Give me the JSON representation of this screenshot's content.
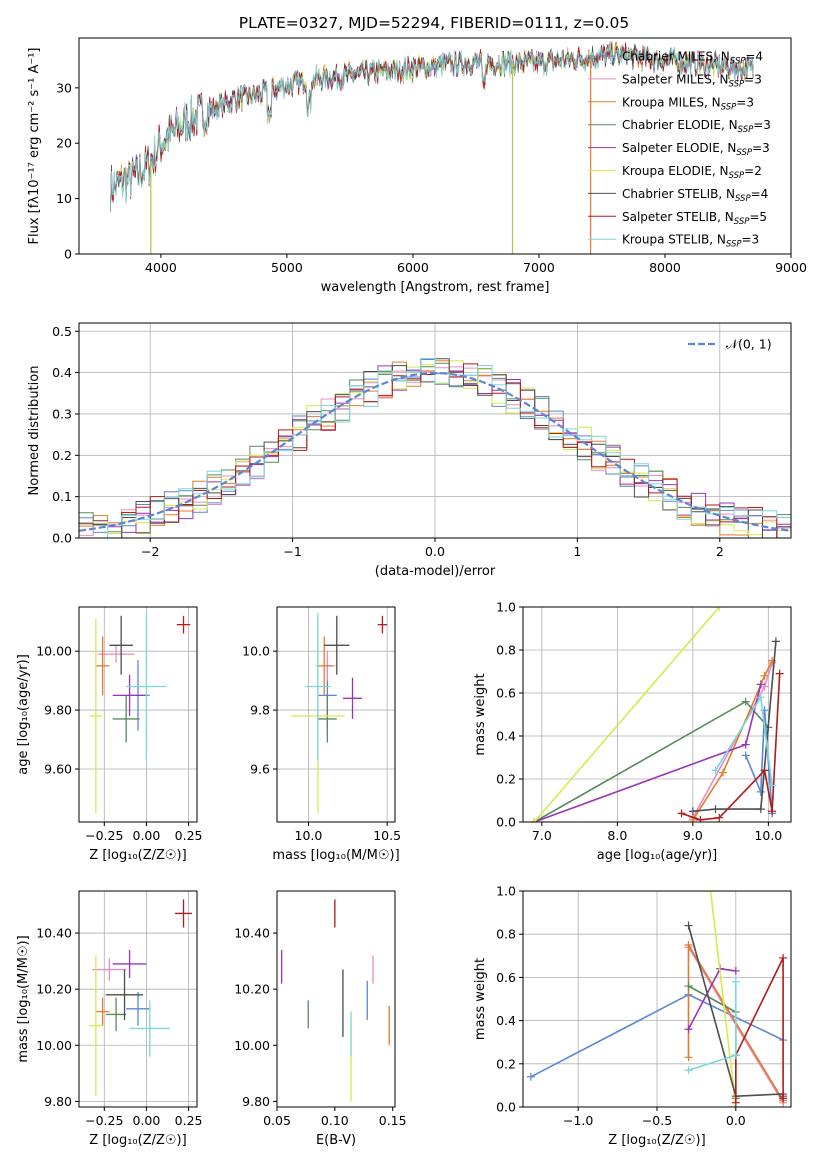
{
  "title": "PLATE=0327, MJD=52294, FIBERID=0111, z=0.05",
  "colors": {
    "chabrier_miles": "#5b86d6",
    "salpeter_miles": "#e88cc4",
    "kroupa_miles": "#e07c2c",
    "chabrier_elodie": "#5a8a5c",
    "salpeter_elodie": "#9a34b4",
    "kroupa_elodie": "#d6ea4a",
    "chabrier_stelib": "#4d4d4d",
    "salpeter_stelib": "#b41a1a",
    "kroupa_stelib": "#7ad8dc",
    "normal": "#5b86d6"
  },
  "chart_data": [
    {
      "id": "spectrum",
      "type": "line",
      "xlabel": "wavelength [Angstrom, rest frame]",
      "ylabel": "Flux [fλ10⁻¹⁷ erg cm⁻² s⁻¹ A⁻¹]",
      "xlim": [
        3350,
        9000
      ],
      "ylim": [
        0,
        39
      ],
      "xticks": [
        4000,
        5000,
        6000,
        7000,
        8000,
        9000
      ],
      "yticks": [
        0,
        10,
        20,
        30
      ],
      "legend": "upper right",
      "legend_entries": [
        "Chabrier MILES, N_SSP=4",
        "Salpeter MILES, N_SSP=3",
        "Kroupa MILES, N_SSP=3",
        "Chabrier ELODIE, N_SSP=3",
        "Salpeter ELODIE, N_SSP=3",
        "Kroupa ELODIE, N_SSP=2",
        "Chabrier STELIB, N_SSP=4",
        "Salpeter STELIB, N_SSP=5",
        "Kroupa STELIB, N_SSP=3"
      ],
      "continuum": {
        "x": [
          3600,
          3700,
          3800,
          3900,
          4000,
          4200,
          4400,
          4600,
          4800,
          5000,
          5200,
          5400,
          5600,
          5800,
          6000,
          6200,
          6400,
          6600,
          6800,
          7000,
          7200,
          7400,
          7600,
          7800,
          8000,
          8200,
          8400,
          8600
        ],
        "y": [
          12,
          13,
          14,
          16,
          20,
          24,
          26,
          28,
          29,
          30.5,
          31.5,
          32,
          32.5,
          33,
          33.5,
          34,
          34.5,
          34.5,
          34.5,
          34.5,
          35,
          35.5,
          36,
          35.5,
          35,
          34.5,
          34,
          33.5
        ]
      }
    },
    {
      "id": "residuals",
      "type": "histogram",
      "xlabel": "(data-model)/error",
      "ylabel": "Normed distribution",
      "xlim": [
        -2.5,
        2.5
      ],
      "ylim": [
        0,
        0.52
      ],
      "xticks": [
        -2,
        -1,
        0,
        1,
        2
      ],
      "yticks": [
        0.0,
        0.1,
        0.2,
        0.3,
        0.4,
        0.5
      ],
      "grid": true,
      "legend": "upper right",
      "legend_entries": [
        "𝒩(0, 1)"
      ],
      "bin_width": 0.1,
      "normal_curve": {
        "mean": 0,
        "sigma": 1
      }
    },
    {
      "id": "z_vs_age",
      "type": "scatter",
      "xlabel": "Z [log₁₀(Z/Z☉)]",
      "ylabel": "age  [log₁₀(age/yr)]",
      "xlim": [
        -0.4,
        0.3
      ],
      "ylim": [
        9.42,
        10.15
      ],
      "xticks": [
        -0.25,
        0.0,
        0.25
      ],
      "yticks": [
        9.6,
        9.8,
        10.0
      ],
      "grid": true,
      "points": [
        {
          "x": -0.05,
          "y": 9.85,
          "xerr": 0.07,
          "yerr": 0.12
        },
        {
          "x": -0.18,
          "y": 9.99,
          "xerr": 0.11,
          "yerr": 0.03
        },
        {
          "x": -0.26,
          "y": 9.95,
          "xerr": 0.04,
          "yerr": 0.1
        },
        {
          "x": -0.12,
          "y": 9.77,
          "xerr": 0.08,
          "yerr": 0.08
        },
        {
          "x": -0.1,
          "y": 9.85,
          "xerr": 0.1,
          "yerr": 0.07
        },
        {
          "x": -0.3,
          "y": 9.78,
          "xerr": 0.04,
          "yerr": 0.33
        },
        {
          "x": -0.15,
          "y": 10.02,
          "xerr": 0.07,
          "yerr": 0.1
        },
        {
          "x": 0.22,
          "y": 10.09,
          "xerr": 0.04,
          "yerr": 0.03
        },
        {
          "x": 0.0,
          "y": 9.88,
          "xerr": 0.12,
          "yerr": 0.25
        }
      ]
    },
    {
      "id": "mass_vs_age",
      "type": "scatter",
      "xlabel": "mass [log₁₀(M/M☉)]",
      "ylabel": "",
      "xlim": [
        9.8,
        10.55
      ],
      "ylim": [
        9.42,
        10.15
      ],
      "xticks": [
        10.0,
        10.5
      ],
      "yticks": [
        9.6,
        9.8,
        10.0
      ],
      "grid": true,
      "points": [
        {
          "x": 10.12,
          "y": 9.85,
          "xerr": 0.06,
          "yerr": 0.12
        },
        {
          "x": 10.12,
          "y": 9.95,
          "xerr": 0.05,
          "yerr": 0.05
        },
        {
          "x": 10.1,
          "y": 9.95,
          "xerr": 0.05,
          "yerr": 0.1
        },
        {
          "x": 10.12,
          "y": 9.77,
          "xerr": 0.06,
          "yerr": 0.08
        },
        {
          "x": 10.28,
          "y": 9.84,
          "xerr": 0.06,
          "yerr": 0.07
        },
        {
          "x": 10.06,
          "y": 9.78,
          "xerr": 0.17,
          "yerr": 0.33
        },
        {
          "x": 10.18,
          "y": 10.02,
          "xerr": 0.08,
          "yerr": 0.1
        },
        {
          "x": 10.47,
          "y": 10.09,
          "xerr": 0.03,
          "yerr": 0.03
        },
        {
          "x": 10.06,
          "y": 9.88,
          "xerr": 0.08,
          "yerr": 0.25
        }
      ]
    },
    {
      "id": "age_vs_weight",
      "type": "line",
      "xlabel": "age  [log₁₀(age/yr)]",
      "ylabel": "mass weight",
      "xlim": [
        6.75,
        10.3
      ],
      "ylim": [
        0,
        1
      ],
      "xticks": [
        7,
        8,
        9,
        10
      ],
      "yticks": [
        0.0,
        0.2,
        0.4,
        0.6,
        0.8,
        1.0
      ],
      "grid": true,
      "series": [
        {
          "x": [
            9.7,
            9.9,
            9.95,
            10.05
          ],
          "y": [
            0.31,
            0.14,
            0.52,
            0.04
          ]
        },
        {
          "x": [
            9.0,
            9.95,
            10.05
          ],
          "y": [
            0.02,
            0.63,
            0.74
          ]
        },
        {
          "x": [
            9.0,
            9.4,
            9.95,
            10.05
          ],
          "y": [
            0.01,
            0.23,
            0.68,
            0.75
          ]
        },
        {
          "x": [
            6.9,
            9.7,
            10.0
          ],
          "y": [
            0.0,
            0.56,
            0.44
          ]
        },
        {
          "x": [
            6.9,
            9.7,
            9.9
          ],
          "y": [
            0.0,
            0.36,
            0.64
          ]
        },
        {
          "x": [
            6.9,
            9.35
          ],
          "y": [
            0.0,
            1.0
          ]
        },
        {
          "x": [
            9.0,
            9.3,
            9.9,
            10.1
          ],
          "y": [
            0.05,
            0.06,
            0.06,
            0.84
          ]
        },
        {
          "x": [
            8.85,
            9.1,
            9.35,
            9.95,
            10.05,
            10.15
          ],
          "y": [
            0.04,
            0.01,
            0.02,
            0.24,
            0.05,
            0.69
          ]
        },
        {
          "x": [
            9.3,
            9.9,
            10.05
          ],
          "y": [
            0.24,
            0.58,
            0.17
          ]
        }
      ]
    },
    {
      "id": "z_vs_mass",
      "type": "scatter",
      "xlabel": "Z [log₁₀(Z/Z☉)]",
      "ylabel": "mass [log₁₀(M/M☉)]",
      "xlim": [
        -0.4,
        0.3
      ],
      "ylim": [
        9.78,
        10.55
      ],
      "xticks": [
        -0.25,
        0.0,
        0.25
      ],
      "yticks": [
        9.8,
        10.0,
        10.2,
        10.4
      ],
      "grid": true,
      "points": [
        {
          "x": -0.05,
          "y": 10.13,
          "xerr": 0.07,
          "yerr": 0.06
        },
        {
          "x": -0.22,
          "y": 10.27,
          "xerr": 0.1,
          "yerr": 0.04
        },
        {
          "x": -0.26,
          "y": 10.12,
          "xerr": 0.04,
          "yerr": 0.05
        },
        {
          "x": -0.18,
          "y": 10.11,
          "xerr": 0.06,
          "yerr": 0.06
        },
        {
          "x": -0.1,
          "y": 10.29,
          "xerr": 0.1,
          "yerr": 0.05
        },
        {
          "x": -0.3,
          "y": 10.07,
          "xerr": 0.04,
          "yerr": 0.25
        },
        {
          "x": -0.13,
          "y": 10.18,
          "xerr": 0.11,
          "yerr": 0.09
        },
        {
          "x": 0.22,
          "y": 10.47,
          "xerr": 0.05,
          "yerr": 0.05
        },
        {
          "x": 0.02,
          "y": 10.06,
          "xerr": 0.12,
          "yerr": 0.1
        }
      ]
    },
    {
      "id": "ebv_vs_mass",
      "type": "scatter",
      "xlabel": "E(B-V)",
      "ylabel": "",
      "xlim": [
        0.05,
        0.152
      ],
      "ylim": [
        9.78,
        10.55
      ],
      "xticks": [
        0.05,
        0.1,
        0.15
      ],
      "yticks": [
        9.8,
        10.0,
        10.2,
        10.4
      ],
      "grid": false,
      "points": [
        {
          "x": 0.128,
          "y": 10.16,
          "yerr": 0.07
        },
        {
          "x": 0.133,
          "y": 10.27,
          "yerr": 0.05
        },
        {
          "x": 0.147,
          "y": 10.07,
          "yerr": 0.07
        },
        {
          "x": 0.077,
          "y": 10.11,
          "yerr": 0.05
        },
        {
          "x": 0.054,
          "y": 10.28,
          "yerr": 0.06
        },
        {
          "x": 0.114,
          "y": 9.94,
          "yerr": 0.14
        },
        {
          "x": 0.107,
          "y": 10.15,
          "yerr": 0.12
        },
        {
          "x": 0.1,
          "y": 10.47,
          "yerr": 0.05
        },
        {
          "x": 0.114,
          "y": 10.04,
          "yerr": 0.08
        }
      ]
    },
    {
      "id": "z_vs_weight",
      "type": "line",
      "xlabel": "Z [log₁₀(Z/Z☉)]",
      "ylabel": "mass weight",
      "xlim": [
        -1.35,
        0.35
      ],
      "ylim": [
        0,
        1
      ],
      "xticks": [
        -1.0,
        -0.5,
        0.0
      ],
      "yticks": [
        0.0,
        0.2,
        0.4,
        0.6,
        0.8,
        1.0
      ],
      "grid": true,
      "series": [
        {
          "x": [
            -1.3,
            -0.3,
            0.3
          ],
          "y": [
            0.14,
            0.52,
            0.31
          ]
        },
        {
          "x": [
            -0.3,
            0.3
          ],
          "y": [
            0.74,
            0.02
          ]
        },
        {
          "x": [
            -0.3,
            -0.3,
            0.3
          ],
          "y": [
            0.23,
            0.75,
            0.03
          ]
        },
        {
          "x": [
            -0.3,
            0.0,
            0.0
          ],
          "y": [
            0.56,
            0.44,
            0.04
          ]
        },
        {
          "x": [
            -0.3,
            -0.1,
            0.0
          ],
          "y": [
            0.36,
            0.64,
            0.63
          ]
        },
        {
          "x": [
            -0.16,
            0.0
          ],
          "y": [
            1.0,
            0.0
          ]
        },
        {
          "x": [
            -0.3,
            0.0,
            0.3,
            0.3
          ],
          "y": [
            0.84,
            0.05,
            0.06,
            0.05
          ]
        },
        {
          "x": [
            0.0,
            0.0,
            0.3,
            0.3
          ],
          "y": [
            0.02,
            0.24,
            0.69,
            0.04
          ]
        },
        {
          "x": [
            -0.3,
            0.0,
            0.0
          ],
          "y": [
            0.17,
            0.24,
            0.58
          ]
        }
      ]
    }
  ]
}
